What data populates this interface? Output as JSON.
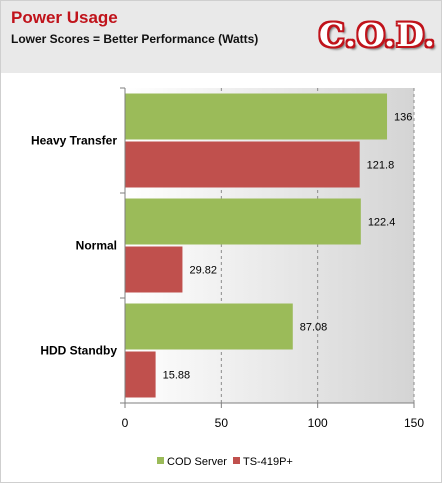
{
  "header": {
    "title": "Power Usage",
    "subtitle": "Lower Scores = Better Performance (Watts)",
    "logo_text": "C.O.D."
  },
  "colors": {
    "cod_server": "#9bbb59",
    "ts_419p": "#c0504d",
    "title": "#c0131b",
    "gridline": "#8c8c8c"
  },
  "chart_data": {
    "type": "bar",
    "orientation": "horizontal",
    "title": "Power Usage",
    "subtitle": "Lower Scores = Better Performance (Watts)",
    "categories": [
      "Heavy Transfer",
      "Normal",
      "HDD Standby"
    ],
    "series": [
      {
        "name": "COD Server",
        "values": [
          136,
          122.4,
          87.08
        ]
      },
      {
        "name": "TS-419P+",
        "values": [
          121.8,
          29.82,
          15.88
        ]
      }
    ],
    "xlim": [
      0,
      150
    ],
    "xticks": [
      0,
      50,
      100,
      150
    ],
    "grid": true,
    "legend": "bottom",
    "xlabel": "",
    "ylabel": ""
  }
}
